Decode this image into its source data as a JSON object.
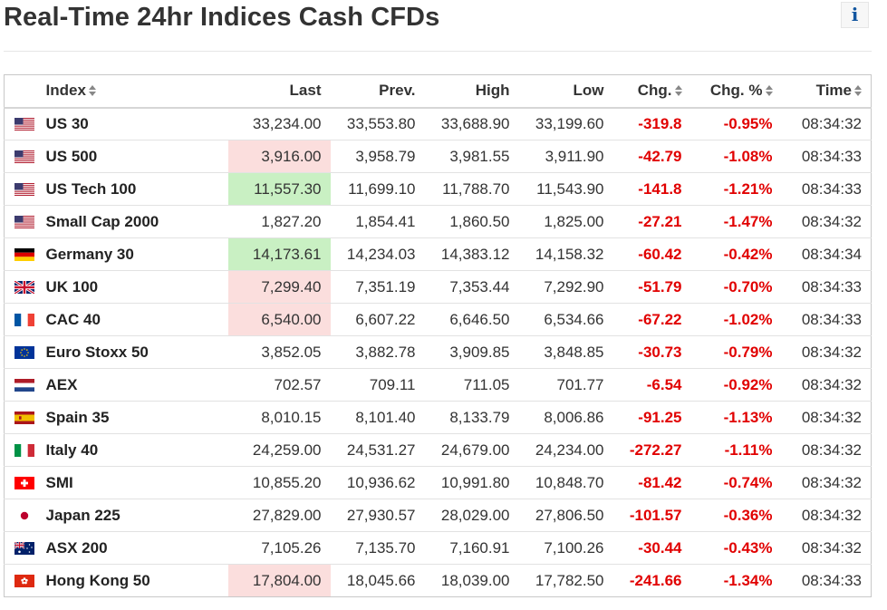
{
  "page": {
    "title": "Real-Time 24hr Indices Cash CFDs",
    "info_label": "i"
  },
  "table": {
    "headers": {
      "index": "Index",
      "last": "Last",
      "prev": "Prev.",
      "high": "High",
      "low": "Low",
      "chg": "Chg.",
      "chg_pct": "Chg. %",
      "time": "Time"
    },
    "rows": [
      {
        "flag": "us-flag-icon",
        "name": "US 30",
        "last": "33,234.00",
        "prev": "33,553.80",
        "high": "33,688.90",
        "low": "33,199.60",
        "chg": "-319.8",
        "chg_pct": "-0.95%",
        "time": "08:34:32",
        "last_flash": "none"
      },
      {
        "flag": "us-flag-icon",
        "name": "US 500",
        "last": "3,916.00",
        "prev": "3,958.79",
        "high": "3,981.55",
        "low": "3,911.90",
        "chg": "-42.79",
        "chg_pct": "-1.08%",
        "time": "08:34:33",
        "last_flash": "down"
      },
      {
        "flag": "us-flag-icon",
        "name": "US Tech 100",
        "last": "11,557.30",
        "prev": "11,699.10",
        "high": "11,788.70",
        "low": "11,543.90",
        "chg": "-141.8",
        "chg_pct": "-1.21%",
        "time": "08:34:33",
        "last_flash": "up"
      },
      {
        "flag": "us-flag-icon",
        "name": "Small Cap 2000",
        "last": "1,827.20",
        "prev": "1,854.41",
        "high": "1,860.50",
        "low": "1,825.00",
        "chg": "-27.21",
        "chg_pct": "-1.47%",
        "time": "08:34:32",
        "last_flash": "none"
      },
      {
        "flag": "germany-flag-icon",
        "name": "Germany 30",
        "last": "14,173.61",
        "prev": "14,234.03",
        "high": "14,383.12",
        "low": "14,158.32",
        "chg": "-60.42",
        "chg_pct": "-0.42%",
        "time": "08:34:34",
        "last_flash": "up"
      },
      {
        "flag": "uk-flag-icon",
        "name": "UK 100",
        "last": "7,299.40",
        "prev": "7,351.19",
        "high": "7,353.44",
        "low": "7,292.90",
        "chg": "-51.79",
        "chg_pct": "-0.70%",
        "time": "08:34:33",
        "last_flash": "down"
      },
      {
        "flag": "france-flag-icon",
        "name": "CAC 40",
        "last": "6,540.00",
        "prev": "6,607.22",
        "high": "6,646.50",
        "low": "6,534.66",
        "chg": "-67.22",
        "chg_pct": "-1.02%",
        "time": "08:34:33",
        "last_flash": "down"
      },
      {
        "flag": "eu-flag-icon",
        "name": "Euro Stoxx 50",
        "last": "3,852.05",
        "prev": "3,882.78",
        "high": "3,909.85",
        "low": "3,848.85",
        "chg": "-30.73",
        "chg_pct": "-0.79%",
        "time": "08:34:32",
        "last_flash": "none"
      },
      {
        "flag": "netherlands-flag-icon",
        "name": "AEX",
        "last": "702.57",
        "prev": "709.11",
        "high": "711.05",
        "low": "701.77",
        "chg": "-6.54",
        "chg_pct": "-0.92%",
        "time": "08:34:32",
        "last_flash": "none"
      },
      {
        "flag": "spain-flag-icon",
        "name": "Spain 35",
        "last": "8,010.15",
        "prev": "8,101.40",
        "high": "8,133.79",
        "low": "8,006.86",
        "chg": "-91.25",
        "chg_pct": "-1.13%",
        "time": "08:34:32",
        "last_flash": "none"
      },
      {
        "flag": "italy-flag-icon",
        "name": "Italy 40",
        "last": "24,259.00",
        "prev": "24,531.27",
        "high": "24,679.00",
        "low": "24,234.00",
        "chg": "-272.27",
        "chg_pct": "-1.11%",
        "time": "08:34:32",
        "last_flash": "none"
      },
      {
        "flag": "switzerland-flag-icon",
        "name": "SMI",
        "last": "10,855.20",
        "prev": "10,936.62",
        "high": "10,991.80",
        "low": "10,848.70",
        "chg": "-81.42",
        "chg_pct": "-0.74%",
        "time": "08:34:32",
        "last_flash": "none"
      },
      {
        "flag": "japan-flag-icon",
        "name": "Japan 225",
        "last": "27,829.00",
        "prev": "27,930.57",
        "high": "28,029.00",
        "low": "27,806.50",
        "chg": "-101.57",
        "chg_pct": "-0.36%",
        "time": "08:34:32",
        "last_flash": "none"
      },
      {
        "flag": "australia-flag-icon",
        "name": "ASX 200",
        "last": "7,105.26",
        "prev": "7,135.70",
        "high": "7,160.91",
        "low": "7,100.26",
        "chg": "-30.44",
        "chg_pct": "-0.43%",
        "time": "08:34:32",
        "last_flash": "none"
      },
      {
        "flag": "hong-kong-flag-icon",
        "name": "Hong Kong 50",
        "last": "17,804.00",
        "prev": "18,045.66",
        "high": "18,039.00",
        "low": "17,782.50",
        "chg": "-241.66",
        "chg_pct": "-1.34%",
        "time": "08:34:33",
        "last_flash": "down"
      }
    ]
  },
  "colors": {
    "negative": "#e10000",
    "flash_down": "#fbdedd",
    "flash_up": "#c9f0c3",
    "info_icon": "#1256a0"
  }
}
